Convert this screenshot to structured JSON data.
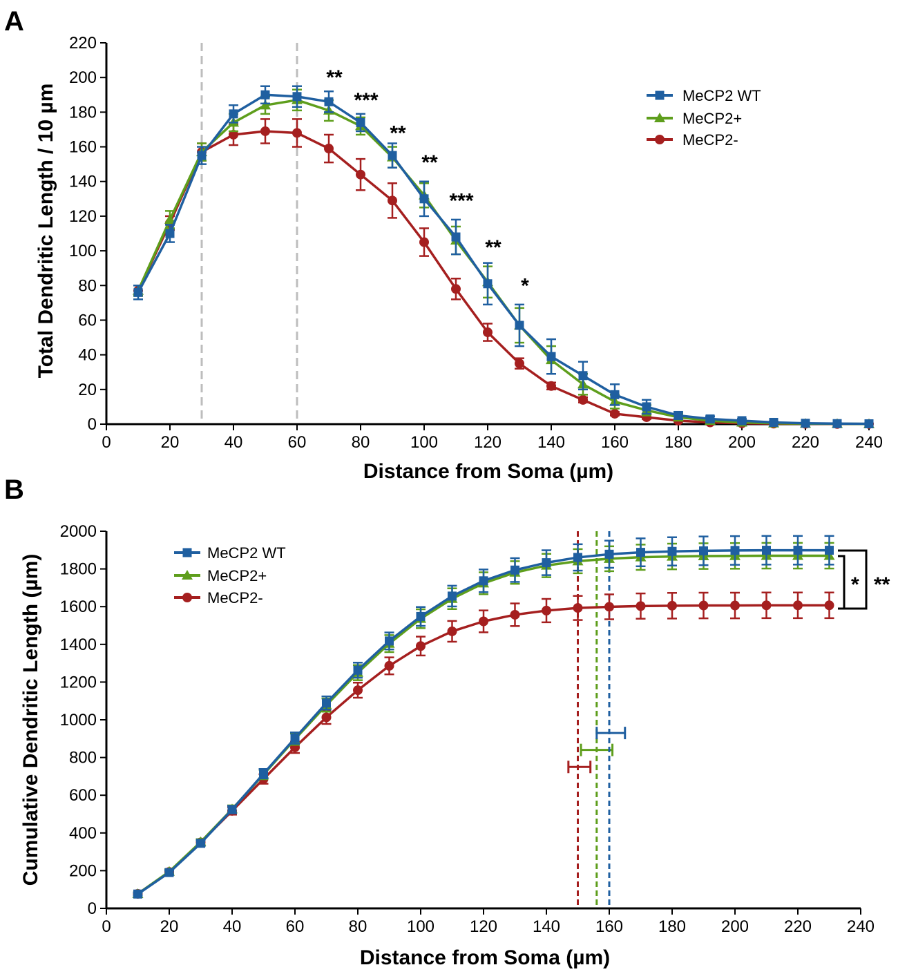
{
  "colors": {
    "wt": "#1f5fa0",
    "plus": "#5e9e1c",
    "minus": "#a51f1f",
    "guide": "#bdbdbd"
  },
  "chart_data": [
    {
      "panel": "A",
      "type": "line",
      "xlabel": "Distance from Soma (µm)",
      "ylabel": "Total Dendritic Length / 10 µm",
      "xlim": [
        0,
        240
      ],
      "ylim": [
        0,
        220
      ],
      "xticks": [
        0,
        20,
        40,
        60,
        80,
        100,
        120,
        140,
        160,
        180,
        200,
        220,
        240
      ],
      "yticks": [
        0,
        20,
        40,
        60,
        80,
        100,
        120,
        140,
        160,
        180,
        200,
        220
      ],
      "legend_position": "top-right",
      "x": [
        10,
        20,
        30,
        40,
        50,
        60,
        70,
        80,
        90,
        100,
        110,
        120,
        130,
        140,
        150,
        160,
        170,
        180,
        190,
        200,
        210,
        220,
        230,
        240
      ],
      "series": [
        {
          "name": "MeCP2 WT",
          "color_key": "wt",
          "marker": "square",
          "values": [
            76,
            110,
            155,
            179,
            190,
            189,
            186,
            174,
            155,
            130,
            108,
            81,
            57,
            39,
            28,
            17,
            10,
            5,
            3,
            2,
            1,
            0.5,
            0.3,
            0.2
          ],
          "errors": [
            4,
            5,
            5,
            5,
            5,
            6,
            6,
            5,
            7,
            10,
            10,
            12,
            12,
            10,
            8,
            6,
            4,
            2,
            1.5,
            1,
            0.5,
            0.3,
            0.2,
            0.1
          ]
        },
        {
          "name": "MeCP2+",
          "color_key": "plus",
          "marker": "triangle",
          "values": [
            77,
            118,
            157,
            174,
            184,
            187,
            181,
            172,
            154,
            132,
            106,
            82,
            57,
            37,
            23,
            13,
            8,
            4,
            2,
            1,
            0.5,
            0.3,
            0.2,
            0.1
          ],
          "errors": [
            3,
            5,
            5,
            5,
            5,
            6,
            6,
            5,
            6,
            7,
            8,
            9,
            10,
            8,
            6,
            4,
            3,
            2,
            1,
            0.5,
            0.3,
            0.2,
            0.1,
            0.1
          ]
        },
        {
          "name": "MeCP2-",
          "color_key": "minus",
          "marker": "circle",
          "values": [
            77,
            116,
            157,
            167,
            169,
            168,
            159,
            144,
            129,
            105,
            78,
            53,
            35,
            22,
            14,
            6,
            4,
            2,
            1,
            0.5,
            0.3,
            0.2,
            0.1,
            0.1
          ],
          "errors": [
            3,
            4,
            5,
            6,
            7,
            8,
            8,
            9,
            10,
            8,
            6,
            5,
            3,
            2,
            1.5,
            1,
            1,
            0.5,
            0.3,
            0.2,
            0.1,
            0.1,
            0.1,
            0.1
          ]
        }
      ],
      "vertical_guides_x": [
        30,
        60
      ],
      "annotations": [
        {
          "x": 70,
          "y": 196,
          "text": "**"
        },
        {
          "x": 80,
          "y": 183,
          "text": "***"
        },
        {
          "x": 90,
          "y": 164,
          "text": "**"
        },
        {
          "x": 100,
          "y": 147,
          "text": "**"
        },
        {
          "x": 110,
          "y": 125,
          "text": "***"
        },
        {
          "x": 120,
          "y": 98,
          "text": "**"
        },
        {
          "x": 130,
          "y": 76,
          "text": "*"
        }
      ]
    },
    {
      "panel": "B",
      "type": "line",
      "xlabel": "Distance from Soma (µm)",
      "ylabel": "Cumulative Dendritic Length (µm)",
      "xlim": [
        0,
        240
      ],
      "ylim": [
        0,
        2000
      ],
      "xticks": [
        0,
        20,
        40,
        60,
        80,
        100,
        120,
        140,
        160,
        180,
        200,
        220,
        240
      ],
      "yticks": [
        0,
        200,
        400,
        600,
        800,
        1000,
        1200,
        1400,
        1600,
        1800,
        2000
      ],
      "legend_position": "top-left",
      "x": [
        10,
        20,
        30,
        40,
        50,
        60,
        70,
        80,
        90,
        100,
        110,
        120,
        130,
        140,
        150,
        160,
        170,
        180,
        190,
        200,
        210,
        220,
        230
      ],
      "series": [
        {
          "name": "MeCP2 WT",
          "color_key": "wt",
          "marker": "square",
          "values": [
            76,
            190,
            345,
            524,
            714,
            903,
            1089,
            1263,
            1418,
            1548,
            1656,
            1737,
            1794,
            1833,
            1861,
            1878,
            1888,
            1893,
            1896,
            1898,
            1899,
            1899,
            1899
          ],
          "errors": [
            8,
            12,
            15,
            20,
            25,
            30,
            35,
            40,
            45,
            50,
            55,
            60,
            63,
            66,
            70,
            72,
            74,
            75,
            76,
            76,
            76,
            76,
            76
          ]
        },
        {
          "name": "MeCP2+",
          "color_key": "plus",
          "marker": "triangle",
          "values": [
            77,
            195,
            352,
            526,
            710,
            897,
            1078,
            1250,
            1404,
            1536,
            1642,
            1724,
            1781,
            1818,
            1841,
            1854,
            1862,
            1866,
            1868,
            1869,
            1870,
            1870,
            1870
          ],
          "errors": [
            8,
            12,
            15,
            20,
            25,
            30,
            35,
            40,
            45,
            50,
            55,
            58,
            60,
            62,
            64,
            66,
            67,
            68,
            68,
            68,
            68,
            68,
            68
          ]
        },
        {
          "name": "MeCP2-",
          "color_key": "minus",
          "marker": "circle",
          "values": [
            77,
            193,
            350,
            517,
            686,
            854,
            1013,
            1157,
            1286,
            1391,
            1469,
            1522,
            1557,
            1579,
            1593,
            1599,
            1603,
            1605,
            1606,
            1606,
            1607,
            1607,
            1607
          ],
          "errors": [
            8,
            12,
            15,
            20,
            25,
            30,
            35,
            40,
            45,
            50,
            55,
            58,
            60,
            62,
            64,
            66,
            67,
            68,
            68,
            68,
            68,
            68,
            68
          ]
        }
      ],
      "threshold_lines": [
        {
          "color_key": "minus",
          "x": 150,
          "err_low": 147,
          "err_high": 154,
          "err_y": 750
        },
        {
          "color_key": "plus",
          "x": 156,
          "err_low": 151,
          "err_high": 161,
          "err_y": 840
        },
        {
          "color_key": "wt",
          "x": 160,
          "err_low": 156,
          "err_high": 165,
          "err_y": 930
        }
      ],
      "significance_brackets": [
        {
          "between": [
            "MeCP2+",
            "MeCP2-"
          ],
          "text": "*"
        },
        {
          "between": [
            "MeCP2 WT",
            "MeCP2-"
          ],
          "text": "**"
        }
      ]
    }
  ]
}
